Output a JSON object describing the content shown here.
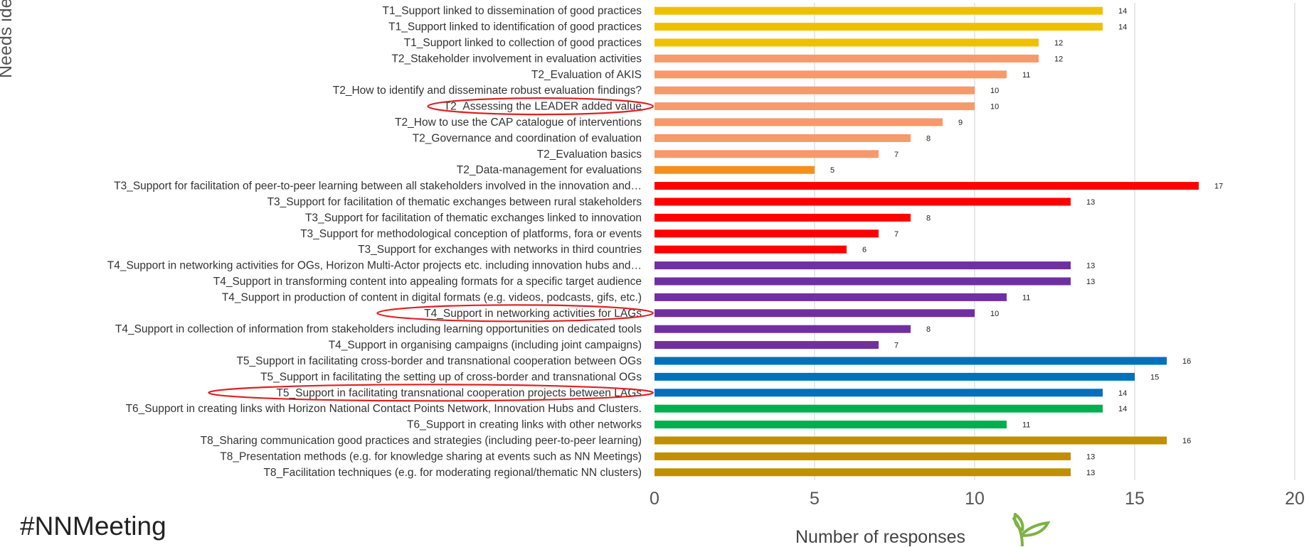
{
  "hashtag": "#NNMeeting",
  "chart_data": {
    "type": "bar",
    "orientation": "horizontal",
    "title": "",
    "xlabel": "Number of responses",
    "ylabel": "Needs identified",
    "xlim": [
      0,
      20
    ],
    "xticks": [
      0,
      5,
      10,
      15,
      20
    ],
    "grid": true,
    "categories": [
      "T1_Support linked to dissemination of good practices",
      "T1_Support linked to identification of good practices",
      "T1_Support linked to collection of good practices",
      "T2_Stakeholder involvement in evaluation activities",
      "T2_Evaluation of AKIS",
      "T2_How to identify and disseminate robust evaluation findings?",
      "T2_Assessing the LEADER added value",
      "T2_How to use the CAP catalogue of interventions",
      "T2_Governance and coordination of evaluation",
      "T2_Evaluation basics",
      "T2_Data-management for evaluations",
      "T3_Support for facilitation of peer-to-peer learning between all stakeholders involved in the innovation and…",
      "T3_Support for facilitation of thematic exchanges between rural stakeholders",
      "T3_Support for facilitation of thematic exchanges linked to innovation",
      "T3_Support for methodological conception of platforms, fora or events",
      "T3_Support for exchanges with networks in third countries",
      "T4_Support in networking activities for OGs, Horizon Multi-Actor projects etc. including innovation hubs and…",
      "T4_Support in transforming content into appealing formats for a specific target audience",
      "T4_Support in production of content in digital formats (e.g. videos, podcasts, gifs, etc.)",
      "T4_Support in networking activities for LAGs",
      "T4_Support in collection of information from stakeholders including learning opportunities on dedicated tools",
      "T4_Support in organising campaigns (including joint campaigns)",
      "T5_Support in facilitating cross-border and transnational cooperation between OGs",
      "T5_Support in facilitating the setting up of cross-border and transnational OGs",
      "T5_Support in facilitating transnational cooperation projects between LAGs",
      "T6_Support in creating links with Horizon National Contact Points Network, Innovation Hubs and Clusters.",
      "T6_Support in creating links with other networks",
      "T8_Sharing communication good practices and strategies (including peer-to-peer learning)",
      "T8_Presentation methods (e.g. for knowledge sharing at events such as NN Meetings)",
      "T8_Facilitation techniques (e.g. for moderating regional/thematic NN clusters)"
    ],
    "values": [
      14,
      14,
      12,
      12,
      11,
      10,
      10,
      9,
      8,
      7,
      5,
      17,
      13,
      8,
      7,
      6,
      13,
      13,
      11,
      10,
      8,
      7,
      16,
      15,
      14,
      14,
      11,
      16,
      13,
      13
    ],
    "colors": [
      "#F0C000",
      "#F0C000",
      "#F0C000",
      "#F7996A",
      "#F7996A",
      "#F7996A",
      "#F7996A",
      "#F7996A",
      "#F7996A",
      "#F7996A",
      "#F39020",
      "#FF0000",
      "#FF0000",
      "#FF0000",
      "#FF0000",
      "#FF0000",
      "#7030A0",
      "#7030A0",
      "#7030A0",
      "#7030A0",
      "#7030A0",
      "#7030A0",
      "#0070C0",
      "#0070C0",
      "#0070C0",
      "#00B050",
      "#00B050",
      "#BF9000",
      "#BF9000",
      "#BF9000"
    ],
    "highlighted_categories": [
      "T2_Assessing the LEADER added value",
      "T4_Support in networking activities for LAGs",
      "T5_Support in facilitating transnational cooperation projects between LAGs"
    ],
    "highlight_color": "#E02020"
  }
}
